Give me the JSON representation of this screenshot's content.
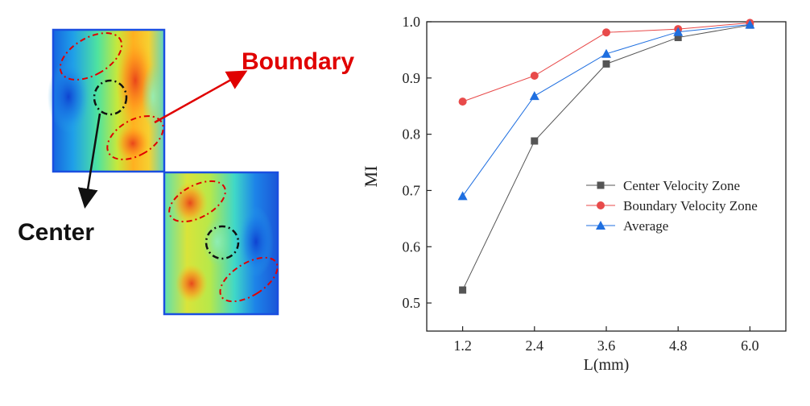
{
  "flowfield": {
    "boundary_label": "Boundary",
    "center_label": "Center",
    "colors": {
      "boundary": "#e00000",
      "center": "#111111"
    }
  },
  "caption": "",
  "chart_data": {
    "type": "line",
    "title": "",
    "xlabel": "L(mm)",
    "ylabel": "MI",
    "x": [
      1.2,
      2.4,
      3.6,
      4.8,
      6.0
    ],
    "x_tick_labels": [
      "1.2",
      "2.4",
      "3.6",
      "4.8",
      "6.0"
    ],
    "xlim": [
      0.6,
      6.6
    ],
    "ylim": [
      0.45,
      1.0
    ],
    "y_ticks": [
      0.5,
      0.6,
      0.7,
      0.8,
      0.9,
      1.0
    ],
    "y_tick_labels": [
      "0.5",
      "0.6",
      "0.7",
      "0.8",
      "0.9",
      "1.0"
    ],
    "grid": false,
    "legend_position": "center-right",
    "series": [
      {
        "name": "Center Velocity Zone",
        "marker": "square",
        "color": "#555555",
        "values": [
          0.523,
          0.788,
          0.925,
          0.972,
          0.994
        ]
      },
      {
        "name": "Boundary Velocity Zone",
        "marker": "circle",
        "color": "#e84a4a",
        "values": [
          0.858,
          0.904,
          0.981,
          0.987,
          0.998
        ]
      },
      {
        "name": "Average",
        "marker": "triangle",
        "color": "#1f6fe0",
        "values": [
          0.69,
          0.868,
          0.943,
          0.982,
          0.995
        ]
      }
    ]
  }
}
